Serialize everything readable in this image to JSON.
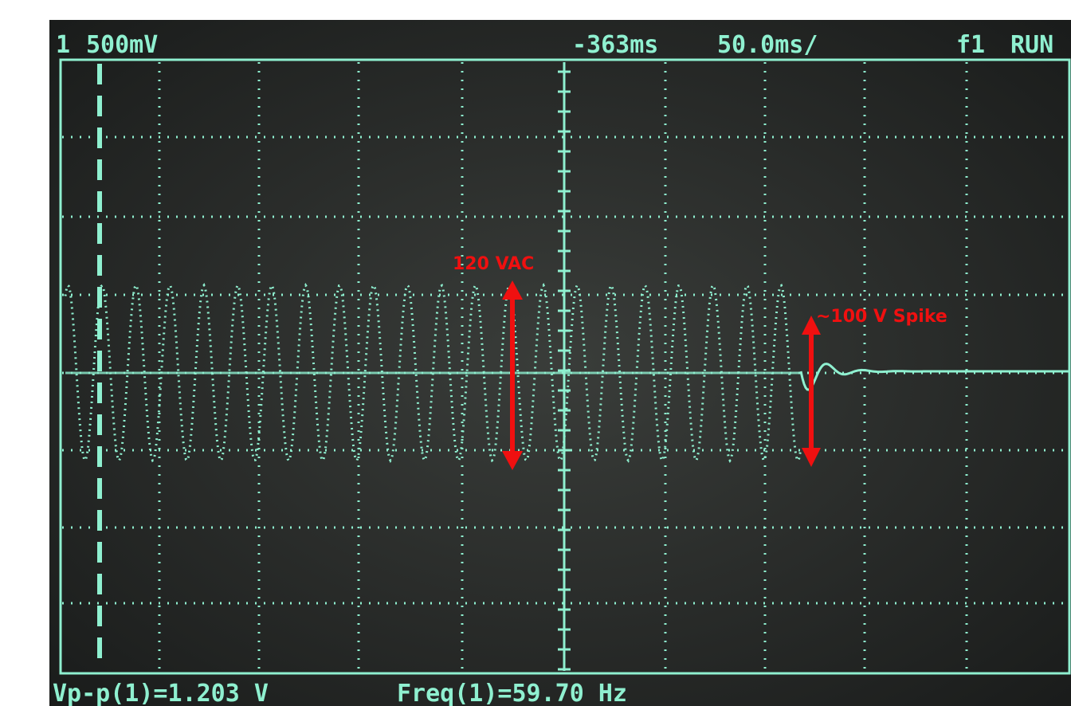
{
  "header": {
    "channel": "1",
    "scale": "500mV",
    "trigger_delay": "-363ms",
    "timebase": "50.0ms/",
    "trigger": "f1",
    "status": "RUN"
  },
  "measurements": [
    "Vp-p(1)=1.203 V",
    "Freq(1)=59.70 Hz"
  ],
  "annotations": [
    "120 VAC",
    "~100 V Spike"
  ]
}
